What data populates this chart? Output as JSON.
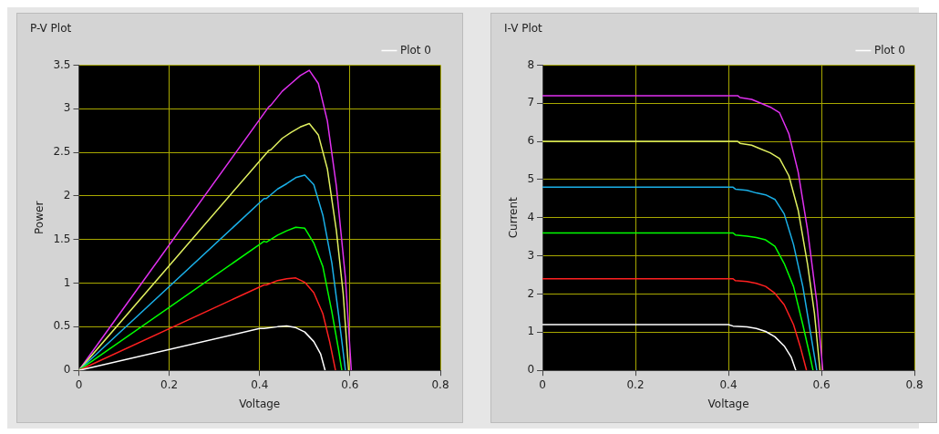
{
  "chart_data": [
    {
      "type": "line",
      "title": "P-V Plot",
      "xlabel": "Voltage",
      "ylabel": "Power",
      "xlim": [
        0,
        0.8
      ],
      "xticks": [
        0,
        0.2,
        0.4,
        0.6,
        0.8
      ],
      "ylim": [
        0,
        3.5
      ],
      "yticks": [
        0,
        0.5,
        1,
        1.5,
        2,
        2.5,
        3,
        3.5
      ],
      "grid": true,
      "legend": "top right",
      "marker": "none",
      "series": [
        {
          "name": "Plot 0",
          "color": "#ffffff",
          "x": [
            0,
            0.4,
            0.41,
            0.44,
            0.46,
            0.48,
            0.5,
            0.52,
            0.535,
            0.545
          ],
          "values": [
            0,
            0.48,
            0.48,
            0.5,
            0.51,
            0.49,
            0.44,
            0.33,
            0.19,
            0
          ]
        },
        {
          "color": "#ff2020",
          "x": [
            0,
            0.41,
            0.415,
            0.44,
            0.46,
            0.48,
            0.5,
            0.52,
            0.54,
            0.555,
            0.568
          ],
          "values": [
            0,
            0.98,
            0.98,
            1.03,
            1.05,
            1.06,
            1.01,
            0.89,
            0.65,
            0.33,
            0
          ]
        },
        {
          "color": "#00ff00",
          "x": [
            0,
            0.41,
            0.415,
            0.44,
            0.46,
            0.48,
            0.5,
            0.52,
            0.54,
            0.56,
            0.575,
            0.582
          ],
          "values": [
            0,
            1.48,
            1.47,
            1.55,
            1.6,
            1.64,
            1.63,
            1.46,
            1.19,
            0.67,
            0.23,
            0
          ]
        },
        {
          "color": "#1ab0e8",
          "x": [
            0,
            0.41,
            0.415,
            0.44,
            0.46,
            0.48,
            0.5,
            0.52,
            0.54,
            0.56,
            0.575,
            0.59
          ],
          "values": [
            0,
            1.97,
            1.97,
            2.08,
            2.14,
            2.21,
            2.24,
            2.13,
            1.78,
            1.23,
            0.63,
            0
          ]
        },
        {
          "color": "#e0f060",
          "x": [
            0,
            0.42,
            0.425,
            0.45,
            0.47,
            0.49,
            0.51,
            0.53,
            0.55,
            0.57,
            0.585,
            0.597
          ],
          "values": [
            0,
            2.52,
            2.53,
            2.66,
            2.73,
            2.79,
            2.83,
            2.7,
            2.31,
            1.6,
            0.88,
            0
          ]
        },
        {
          "color": "#e030f0",
          "x": [
            0,
            0.42,
            0.425,
            0.45,
            0.47,
            0.49,
            0.51,
            0.53,
            0.55,
            0.57,
            0.59,
            0.603
          ],
          "values": [
            0,
            3.02,
            3.04,
            3.2,
            3.29,
            3.38,
            3.44,
            3.29,
            2.86,
            2.11,
            1.06,
            0
          ]
        }
      ]
    },
    {
      "type": "line",
      "title": "I-V Plot",
      "xlabel": "Voltage",
      "ylabel": "Current",
      "xlim": [
        0,
        0.8
      ],
      "xticks": [
        0,
        0.2,
        0.4,
        0.6,
        0.8
      ],
      "ylim": [
        0,
        8
      ],
      "yticks": [
        0,
        1,
        2,
        3,
        4,
        5,
        6,
        7,
        8
      ],
      "grid": true,
      "legend": "top right",
      "marker": "none",
      "series": [
        {
          "name": "Plot 0",
          "color": "#ffffff",
          "x": [
            0,
            0.4,
            0.41,
            0.44,
            0.46,
            0.48,
            0.5,
            0.52,
            0.535,
            0.545
          ],
          "values": [
            1.2,
            1.2,
            1.16,
            1.14,
            1.1,
            1.02,
            0.88,
            0.64,
            0.35,
            0
          ]
        },
        {
          "color": "#ff2020",
          "x": [
            0,
            0.41,
            0.415,
            0.44,
            0.46,
            0.48,
            0.5,
            0.52,
            0.54,
            0.555,
            0.568
          ],
          "values": [
            2.4,
            2.4,
            2.35,
            2.33,
            2.28,
            2.2,
            2.02,
            1.72,
            1.2,
            0.6,
            0
          ]
        },
        {
          "color": "#00ff00",
          "x": [
            0,
            0.41,
            0.415,
            0.44,
            0.46,
            0.48,
            0.5,
            0.52,
            0.54,
            0.56,
            0.575,
            0.582
          ],
          "values": [
            3.6,
            3.6,
            3.55,
            3.52,
            3.48,
            3.42,
            3.25,
            2.8,
            2.2,
            1.2,
            0.4,
            0
          ]
        },
        {
          "color": "#1ab0e8",
          "x": [
            0,
            0.41,
            0.415,
            0.44,
            0.46,
            0.48,
            0.5,
            0.52,
            0.54,
            0.56,
            0.575,
            0.59
          ],
          "values": [
            4.8,
            4.8,
            4.75,
            4.72,
            4.65,
            4.6,
            4.48,
            4.1,
            3.3,
            2.2,
            1.1,
            0
          ]
        },
        {
          "color": "#e0f060",
          "x": [
            0,
            0.42,
            0.425,
            0.45,
            0.47,
            0.49,
            0.51,
            0.53,
            0.55,
            0.57,
            0.585,
            0.597
          ],
          "values": [
            6,
            6,
            5.95,
            5.9,
            5.8,
            5.7,
            5.55,
            5.1,
            4.2,
            2.8,
            1.5,
            0
          ]
        },
        {
          "color": "#e030f0",
          "x": [
            0,
            0.42,
            0.425,
            0.45,
            0.47,
            0.49,
            0.51,
            0.53,
            0.55,
            0.57,
            0.59,
            0.603
          ],
          "values": [
            7.2,
            7.2,
            7.15,
            7.1,
            7,
            6.9,
            6.75,
            6.2,
            5.2,
            3.7,
            1.8,
            0
          ]
        }
      ]
    }
  ]
}
